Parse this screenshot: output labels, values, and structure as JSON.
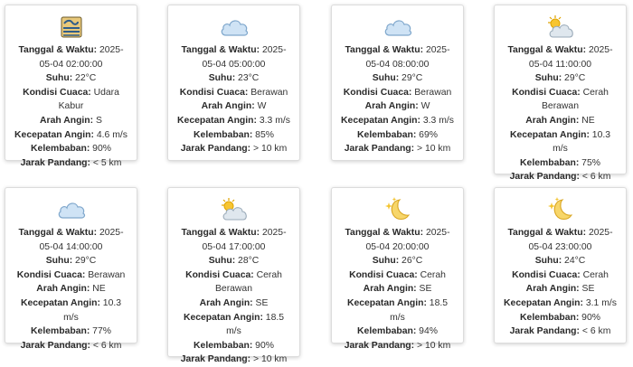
{
  "labels": {
    "datetime": "Tanggal & Waktu:",
    "temp": "Suhu:",
    "condition": "Kondisi Cuaca:",
    "wind_dir": "Arah Angin:",
    "wind_speed": "Kecepatan Angin:",
    "humidity": "Kelembaban:",
    "visibility": "Jarak Pandang:"
  },
  "cards": [
    {
      "icon": "haze-icon",
      "datetime": "2025-05-04 02:00:00",
      "temp": "22°C",
      "condition": "Udara Kabur",
      "wind_dir": "S",
      "wind_speed": "4.6 m/s",
      "humidity": "90%",
      "visibility": "< 5 km"
    },
    {
      "icon": "cloud-icon",
      "datetime": "2025-05-04 05:00:00",
      "temp": "23°C",
      "condition": "Berawan",
      "wind_dir": "W",
      "wind_speed": "3.3 m/s",
      "humidity": "85%",
      "visibility": "> 10 km"
    },
    {
      "icon": "cloud-icon",
      "datetime": "2025-05-04 08:00:00",
      "temp": "29°C",
      "condition": "Berawan",
      "wind_dir": "W",
      "wind_speed": "3.3 m/s",
      "humidity": "69%",
      "visibility": "> 10 km"
    },
    {
      "icon": "sun-behind-cloud-icon",
      "datetime": "2025-05-04 11:00:00",
      "temp": "29°C",
      "condition": "Cerah Berawan",
      "wind_dir": "NE",
      "wind_speed": "10.3 m/s",
      "humidity": "75%",
      "visibility": "< 6 km"
    },
    {
      "icon": "cloud-icon",
      "datetime": "2025-05-04 14:00:00",
      "temp": "29°C",
      "condition": "Berawan",
      "wind_dir": "NE",
      "wind_speed": "10.3 m/s",
      "humidity": "77%",
      "visibility": "< 6 km"
    },
    {
      "icon": "sun-behind-cloud-icon",
      "datetime": "2025-05-04 17:00:00",
      "temp": "28°C",
      "condition": "Cerah Berawan",
      "wind_dir": "SE",
      "wind_speed": "18.5 m/s",
      "humidity": "90%",
      "visibility": "> 10 km"
    },
    {
      "icon": "moon-stars-icon",
      "datetime": "2025-05-04 20:00:00",
      "temp": "26°C",
      "condition": "Cerah",
      "wind_dir": "SE",
      "wind_speed": "18.5 m/s",
      "humidity": "94%",
      "visibility": "> 10 km"
    },
    {
      "icon": "moon-stars-icon",
      "datetime": "2025-05-04 23:00:00",
      "temp": "24°C",
      "condition": "Cerah",
      "wind_dir": "SE",
      "wind_speed": "3.1 m/s",
      "humidity": "90%",
      "visibility": "< 6 km"
    }
  ]
}
